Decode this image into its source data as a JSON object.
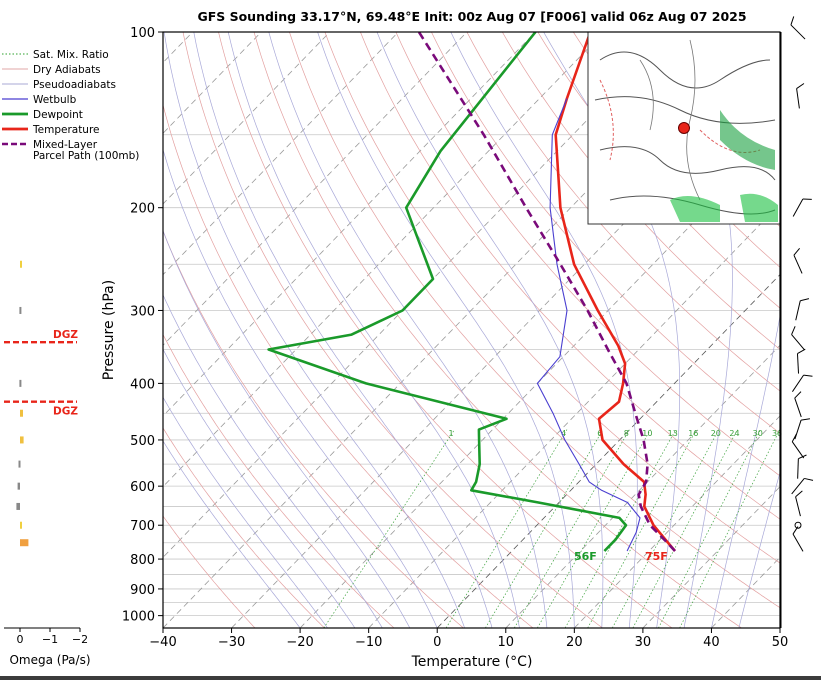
{
  "title": "GFS Sounding 33.17°N, 69.48°E Init: 00z Aug 07 [F006] valid 06z Aug 07 2025",
  "legend": [
    {
      "label": "Sat. Mix. Ratio",
      "color": "#2ca02c",
      "style": "dotted"
    },
    {
      "label": "Dry Adiabats",
      "color": "#d98a8a",
      "style": "solid-thin"
    },
    {
      "label": "Pseudoadiabats",
      "color": "#8c8cc8",
      "style": "solid-thin"
    },
    {
      "label": "Wetbulb",
      "color": "#4a3fd0",
      "style": "solid"
    },
    {
      "label": "Dewpoint",
      "color": "#1a9a2a",
      "style": "solid-thick"
    },
    {
      "label": "Temperature",
      "color": "#e8251a",
      "style": "solid-thick"
    },
    {
      "label": "Mixed-Layer\nParcel Path (100mb)",
      "color": "#7a0a7a",
      "style": "dashed"
    }
  ],
  "omega": {
    "label": "Omega (Pa/s)",
    "ticks": [
      "0",
      "−1",
      "−2"
    ],
    "dgz_label": "DGZ"
  },
  "surface_labels": {
    "dewpoint": "56F",
    "temperature": "75F"
  },
  "mixing_ratio_labels": [
    "1",
    "4",
    "6",
    "8",
    "10",
    "13",
    "16",
    "20",
    "24",
    "30",
    "36"
  ],
  "chart_data": {
    "type": "line",
    "title": "GFS Sounding 33.17°N, 69.48°E Init: 00z Aug 07 [F006] valid 06z Aug 07 2025",
    "xlabel": "Temperature (°C)",
    "ylabel": "Pressure (hPa)",
    "xlim": [
      -40,
      50
    ],
    "ylim": [
      1050,
      100
    ],
    "yscale": "log",
    "x_ticks": [
      "−40",
      "−30",
      "−20",
      "−10",
      "0",
      "10",
      "20",
      "30",
      "40",
      "50"
    ],
    "y_ticks": [
      "100",
      "200",
      "300",
      "400",
      "500",
      "600",
      "700",
      "800",
      "900",
      "1000"
    ],
    "grid": true,
    "legend_position": "outside-left-top",
    "series": [
      {
        "name": "Temperature",
        "color": "#e8251a",
        "points": [
          {
            "p": 775,
            "t": 23.8
          },
          {
            "p": 750,
            "t": 21.6
          },
          {
            "p": 700,
            "t": 17.0
          },
          {
            "p": 650,
            "t": 13.0
          },
          {
            "p": 620,
            "t": 11.5
          },
          {
            "p": 590,
            "t": 9.5
          },
          {
            "p": 550,
            "t": 4.0
          },
          {
            "p": 500,
            "t": -2.5
          },
          {
            "p": 460,
            "t": -6.0
          },
          {
            "p": 430,
            "t": -5.5
          },
          {
            "p": 400,
            "t": -7.5
          },
          {
            "p": 370,
            "t": -10.0
          },
          {
            "p": 345,
            "t": -13.5
          },
          {
            "p": 300,
            "t": -21.5
          },
          {
            "p": 250,
            "t": -31.5
          },
          {
            "p": 200,
            "t": -41.5
          },
          {
            "p": 150,
            "t": -52.5
          },
          {
            "p": 130,
            "t": -56.0
          },
          {
            "p": 100,
            "t": -62.0
          }
        ]
      },
      {
        "name": "Dewpoint",
        "color": "#1a9a2a",
        "points": [
          {
            "p": 775,
            "t": 13.5
          },
          {
            "p": 740,
            "t": 13.5
          },
          {
            "p": 700,
            "t": 13.0
          },
          {
            "p": 680,
            "t": 11.0
          },
          {
            "p": 640,
            "t": -3.0
          },
          {
            "p": 610,
            "t": -14.5
          },
          {
            "p": 590,
            "t": -15.0
          },
          {
            "p": 550,
            "t": -17.0
          },
          {
            "p": 500,
            "t": -20.5
          },
          {
            "p": 480,
            "t": -22.0
          },
          {
            "p": 460,
            "t": -19.5
          },
          {
            "p": 400,
            "t": -45.0
          },
          {
            "p": 350,
            "t": -64.0
          },
          {
            "p": 330,
            "t": -54.0
          },
          {
            "p": 300,
            "t": -50.0
          },
          {
            "p": 265,
            "t": -50.0
          },
          {
            "p": 200,
            "t": -64.0
          },
          {
            "p": 160,
            "t": -67.0
          },
          {
            "p": 100,
            "t": -70.0
          }
        ]
      },
      {
        "name": "Wetbulb",
        "color": "#4a3fd0",
        "points": [
          {
            "p": 775,
            "t": 16.8
          },
          {
            "p": 720,
            "t": 15.5
          },
          {
            "p": 680,
            "t": 14.0
          },
          {
            "p": 640,
            "t": 10.0
          },
          {
            "p": 610,
            "t": 4.5
          },
          {
            "p": 590,
            "t": 1.5
          },
          {
            "p": 550,
            "t": -2.5
          },
          {
            "p": 500,
            "t": -8.0
          },
          {
            "p": 450,
            "t": -13.5
          },
          {
            "p": 400,
            "t": -20.0
          },
          {
            "p": 360,
            "t": -20.5
          },
          {
            "p": 300,
            "t": -26.0
          },
          {
            "p": 250,
            "t": -34.0
          },
          {
            "p": 200,
            "t": -43.0
          },
          {
            "p": 150,
            "t": -53.0
          },
          {
            "p": 130,
            "t": -56.0
          }
        ]
      },
      {
        "name": "Mixed-Layer Parcel Path (100mb)",
        "color": "#7a0a7a",
        "points": [
          {
            "p": 775,
            "t": 23.8
          },
          {
            "p": 750,
            "t": 21.5
          },
          {
            "p": 700,
            "t": 16.5
          },
          {
            "p": 650,
            "t": 12.5
          },
          {
            "p": 620,
            "t": 10.5
          },
          {
            "p": 590,
            "t": 9.8
          },
          {
            "p": 550,
            "t": 7.5
          },
          {
            "p": 500,
            "t": 3.5
          },
          {
            "p": 450,
            "t": -1.5
          },
          {
            "p": 400,
            "t": -7.0
          },
          {
            "p": 350,
            "t": -14.5
          },
          {
            "p": 300,
            "t": -23.0
          },
          {
            "p": 250,
            "t": -33.5
          },
          {
            "p": 200,
            "t": -46.5
          },
          {
            "p": 150,
            "t": -63.0
          },
          {
            "p": 100,
            "t": -87.0
          }
        ]
      }
    ],
    "omega_series": {
      "values": [
        {
          "p": 250,
          "omega": -0.03,
          "color": "#f0d040"
        },
        {
          "p": 300,
          "omega": 0.02,
          "color": "#888888"
        },
        {
          "p": 400,
          "omega": 0.02,
          "color": "#888888"
        },
        {
          "p": 450,
          "omega": -0.1,
          "color": "#f0c040"
        },
        {
          "p": 500,
          "omega": -0.12,
          "color": "#f0c040"
        },
        {
          "p": 550,
          "omega": 0.05,
          "color": "#888888"
        },
        {
          "p": 600,
          "omega": 0.08,
          "color": "#888888"
        },
        {
          "p": 650,
          "omega": 0.12,
          "color": "#888888"
        },
        {
          "p": 700,
          "omega": -0.06,
          "color": "#f0d040"
        },
        {
          "p": 750,
          "omega": -0.28,
          "color": "#f0a040"
        }
      ]
    },
    "dgz": [
      340,
      430
    ]
  },
  "colors": {
    "temperature": "#e8251a",
    "dewpoint": "#1a9a2a",
    "dgz": "#e8251a"
  }
}
